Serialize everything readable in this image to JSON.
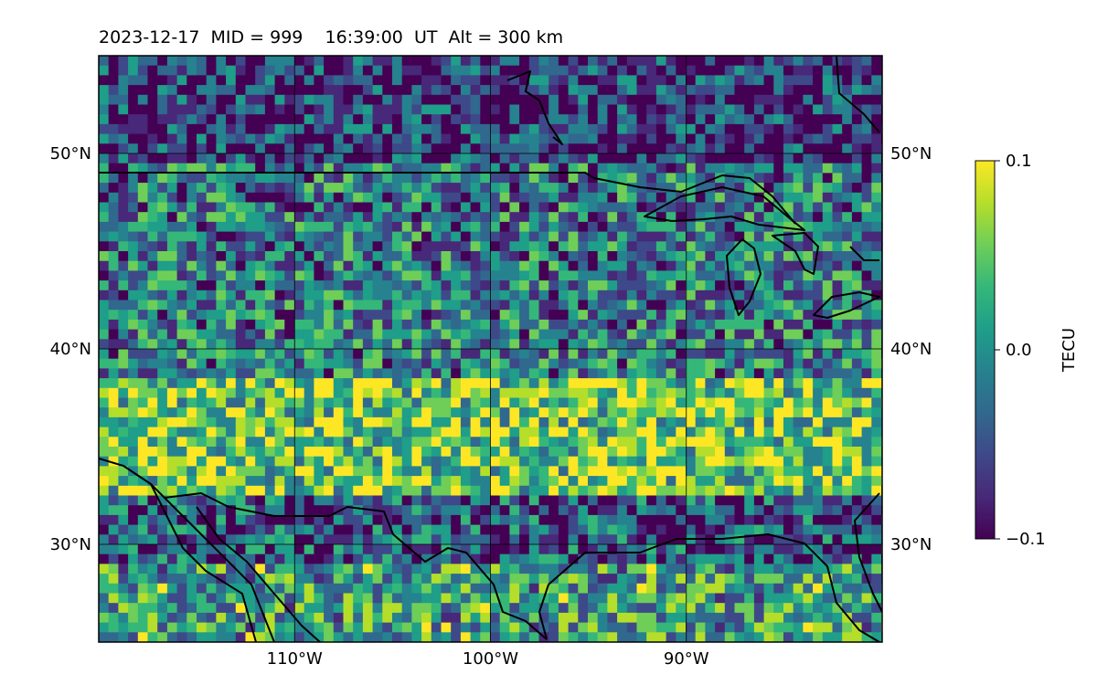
{
  "title": "2023-12-17  MID = 999    16:39:00  UT  Alt = 300 km",
  "map": {
    "lon_range": [
      -120,
      -80
    ],
    "lat_range": [
      25,
      55
    ],
    "lon_ticks": [
      {
        "value": -110,
        "label": "110°W"
      },
      {
        "value": -100,
        "label": "100°W"
      },
      {
        "value": -90,
        "label": "90°W"
      }
    ],
    "lat_ticks": [
      {
        "value": 30,
        "label": "30°N"
      },
      {
        "value": 40,
        "label": "40°N"
      },
      {
        "value": 50,
        "label": "50°N"
      }
    ],
    "colormap": "viridis",
    "field_bands": [
      {
        "lat_max": 55,
        "lat_min": 50,
        "level": 0.2
      },
      {
        "lat_max": 50,
        "lat_min": 45,
        "level": 0.4
      },
      {
        "lat_max": 45,
        "lat_min": 39,
        "level": 0.42
      },
      {
        "lat_max": 39,
        "lat_min": 33,
        "level": 0.72
      },
      {
        "lat_max": 33,
        "lat_min": 29,
        "level": 0.3
      },
      {
        "lat_max": 29,
        "lat_min": 25,
        "level": 0.55
      }
    ]
  },
  "colorbar": {
    "label": "TECU",
    "min": -0.1,
    "max": 0.1,
    "ticks": [
      {
        "value": 0.1,
        "label": "0.1"
      },
      {
        "value": 0.0,
        "label": "0.0"
      },
      {
        "value": -0.1,
        "label": "−0.1"
      }
    ]
  },
  "colors": {
    "viridis": [
      "#440154",
      "#482878",
      "#3e4989",
      "#31688e",
      "#26828e",
      "#1f9e89",
      "#35b779",
      "#6ece58",
      "#b5de2b",
      "#fde725"
    ],
    "coastline": "#000000",
    "grid": "#000000"
  }
}
